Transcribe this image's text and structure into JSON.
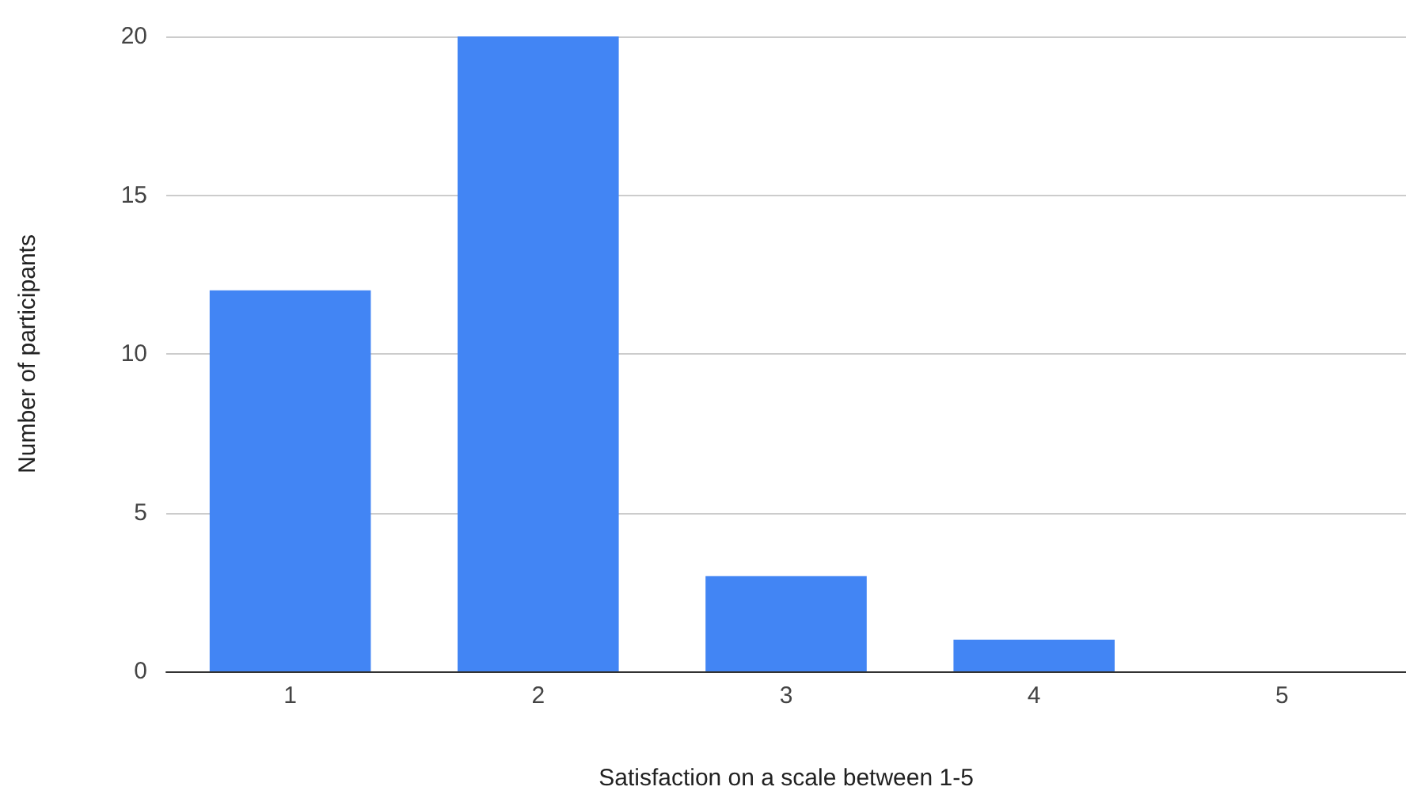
{
  "chart_data": {
    "type": "bar",
    "xlabel": "Satisfaction on a scale between 1-5",
    "ylabel": "Number of participants",
    "categories": [
      "1",
      "2",
      "3",
      "4",
      "5"
    ],
    "values": [
      12,
      20,
      3,
      1,
      0
    ],
    "color": "#4285f4",
    "ylim": [
      0,
      20
    ],
    "yticks": [
      0,
      5,
      10,
      15,
      20
    ],
    "grid": "y"
  }
}
